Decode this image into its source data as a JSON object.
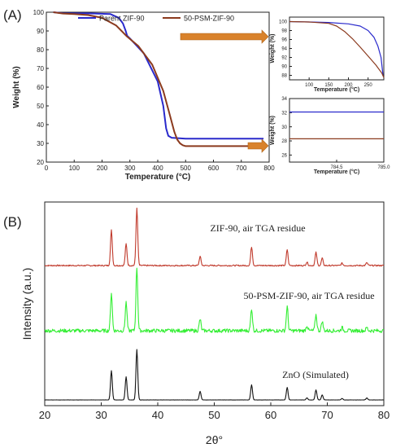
{
  "panel_labels": {
    "a": "(A)",
    "b": "(B)"
  },
  "colors": {
    "zif90": "#2a2acc",
    "psm": "#8b3a1e",
    "xrd_zif": "#c0392b",
    "xrd_psm": "#33ee33",
    "xrd_zno": "#111111",
    "arrow": "#d9822b"
  },
  "chart_data": [
    {
      "type": "line",
      "id": "tga_main",
      "xlabel": "Temperature (°C)",
      "ylabel": "Weight (%)",
      "xlim": [
        0,
        800
      ],
      "ylim": [
        20,
        100
      ],
      "xticks": [
        0,
        100,
        200,
        300,
        400,
        500,
        600,
        700,
        800
      ],
      "yticks": [
        20,
        30,
        40,
        50,
        60,
        70,
        80,
        90,
        100
      ],
      "legend": "top",
      "series": [
        {
          "name": "Parent ZIF-90",
          "x": [
            25,
            60,
            150,
            230,
            260,
            275,
            285,
            290,
            300,
            350,
            400,
            420,
            430,
            438,
            450,
            500,
            600,
            700,
            780
          ],
          "y": [
            100,
            99.5,
            99.4,
            99,
            97,
            94,
            90,
            87.5,
            86,
            78,
            63,
            50,
            38,
            34,
            33,
            32.5,
            32.5,
            32.5,
            32.5
          ]
        },
        {
          "name": "50-PSM-ZIF-90",
          "x": [
            25,
            60,
            100,
            150,
            200,
            250,
            270,
            290,
            330,
            380,
            420,
            440,
            460,
            470,
            480,
            490,
            500,
            600,
            700,
            780
          ],
          "y": [
            100,
            99.3,
            99,
            98.5,
            97,
            93,
            90,
            87,
            82,
            72,
            58,
            47,
            36,
            32,
            30,
            29,
            28.5,
            28.5,
            28.5,
            28.5
          ]
        }
      ]
    },
    {
      "type": "line",
      "id": "tga_inset_top",
      "xlabel": "Temperature (°C)",
      "ylabel": "Weight (%)",
      "xlim": [
        50,
        290
      ],
      "ylim": [
        87,
        101
      ],
      "xticks": [
        100,
        150,
        200,
        250
      ],
      "yticks": [
        88,
        90,
        92,
        94,
        96,
        98,
        100
      ],
      "series": [
        {
          "name": "Parent ZIF-90",
          "x": [
            50,
            100,
            150,
            200,
            230,
            250,
            265,
            275,
            283,
            288
          ],
          "y": [
            100,
            99.9,
            99.8,
            99.5,
            99,
            98,
            96.5,
            94.5,
            92,
            88
          ]
        },
        {
          "name": "50-PSM-ZIF-90",
          "x": [
            50,
            100,
            150,
            170,
            190,
            210,
            230,
            250,
            270,
            285,
            290
          ],
          "y": [
            100,
            99.9,
            99.6,
            99,
            97.8,
            96.2,
            94.3,
            92.3,
            90.3,
            88.5,
            87.5
          ]
        }
      ]
    },
    {
      "type": "line",
      "id": "tga_inset_bottom",
      "xlabel": "Temperature (°C)",
      "ylabel": "Weight (%)",
      "xlim": [
        784.0,
        785.0
      ],
      "ylim": [
        25,
        34
      ],
      "xticks": [
        784.5,
        785.0
      ],
      "yticks": [
        26,
        28,
        30,
        32,
        34
      ],
      "series": [
        {
          "name": "Parent ZIF-90",
          "x": [
            784.0,
            785.0
          ],
          "y": [
            32.1,
            32.1
          ]
        },
        {
          "name": "50-PSM-ZIF-90",
          "x": [
            784.0,
            785.0
          ],
          "y": [
            28.3,
            28.3
          ]
        }
      ]
    },
    {
      "type": "line",
      "id": "xrd",
      "xlabel": "2θ°",
      "ylabel": "Intensity (a.u.)",
      "xlim": [
        20,
        80
      ],
      "xticks": [
        20,
        30,
        40,
        50,
        60,
        70,
        80
      ],
      "series": [
        {
          "name": "ZIF-90, air TGA residue",
          "peaks_x": [
            31.8,
            34.4,
            36.3,
            47.5,
            56.6,
            62.9,
            66.4,
            68.0,
            69.1,
            72.6,
            77.0
          ],
          "peaks_rel": [
            0.62,
            0.38,
            1.0,
            0.16,
            0.33,
            0.28,
            0.06,
            0.23,
            0.13,
            0.04,
            0.05
          ]
        },
        {
          "name": "50-PSM-ZIF-90, air TGA residue",
          "peaks_x": [
            31.8,
            34.4,
            36.3,
            47.5,
            56.6,
            62.9,
            66.4,
            68.0,
            69.1,
            72.6,
            77.0
          ],
          "peaks_rel": [
            0.6,
            0.45,
            1.0,
            0.18,
            0.35,
            0.38,
            0.08,
            0.25,
            0.15,
            0.05,
            0.05
          ]
        },
        {
          "name": "ZnO (Simulated)",
          "peaks_x": [
            31.8,
            34.4,
            36.3,
            47.5,
            56.6,
            62.9,
            66.4,
            68.0,
            69.1,
            72.6,
            77.0
          ],
          "peaks_rel": [
            0.58,
            0.46,
            1.0,
            0.17,
            0.3,
            0.25,
            0.04,
            0.2,
            0.1,
            0.03,
            0.04
          ]
        }
      ]
    }
  ]
}
